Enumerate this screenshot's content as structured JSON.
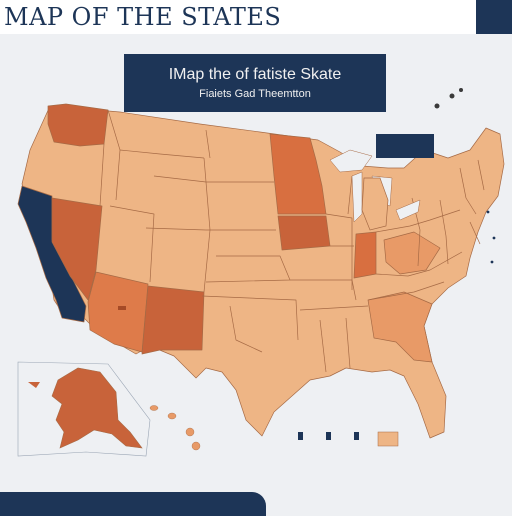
{
  "header": {
    "title": "MAP OF THE STATES"
  },
  "title_card": {
    "line1": "IMap the of fatiste Skate",
    "line2": "Fiaiets Gad Theemtton"
  },
  "inset": {
    "label": ""
  },
  "footer": {
    "text": ""
  },
  "legend": {
    "left_note": "",
    "right_note": ""
  },
  "map_labels": {
    "southwest": ""
  },
  "colors": {
    "navy": "#1d3557",
    "dark_orange": "#c8633a",
    "light_orange": "#eeb585",
    "mid_orange": "#e89a67",
    "background": "#eef0f3"
  }
}
